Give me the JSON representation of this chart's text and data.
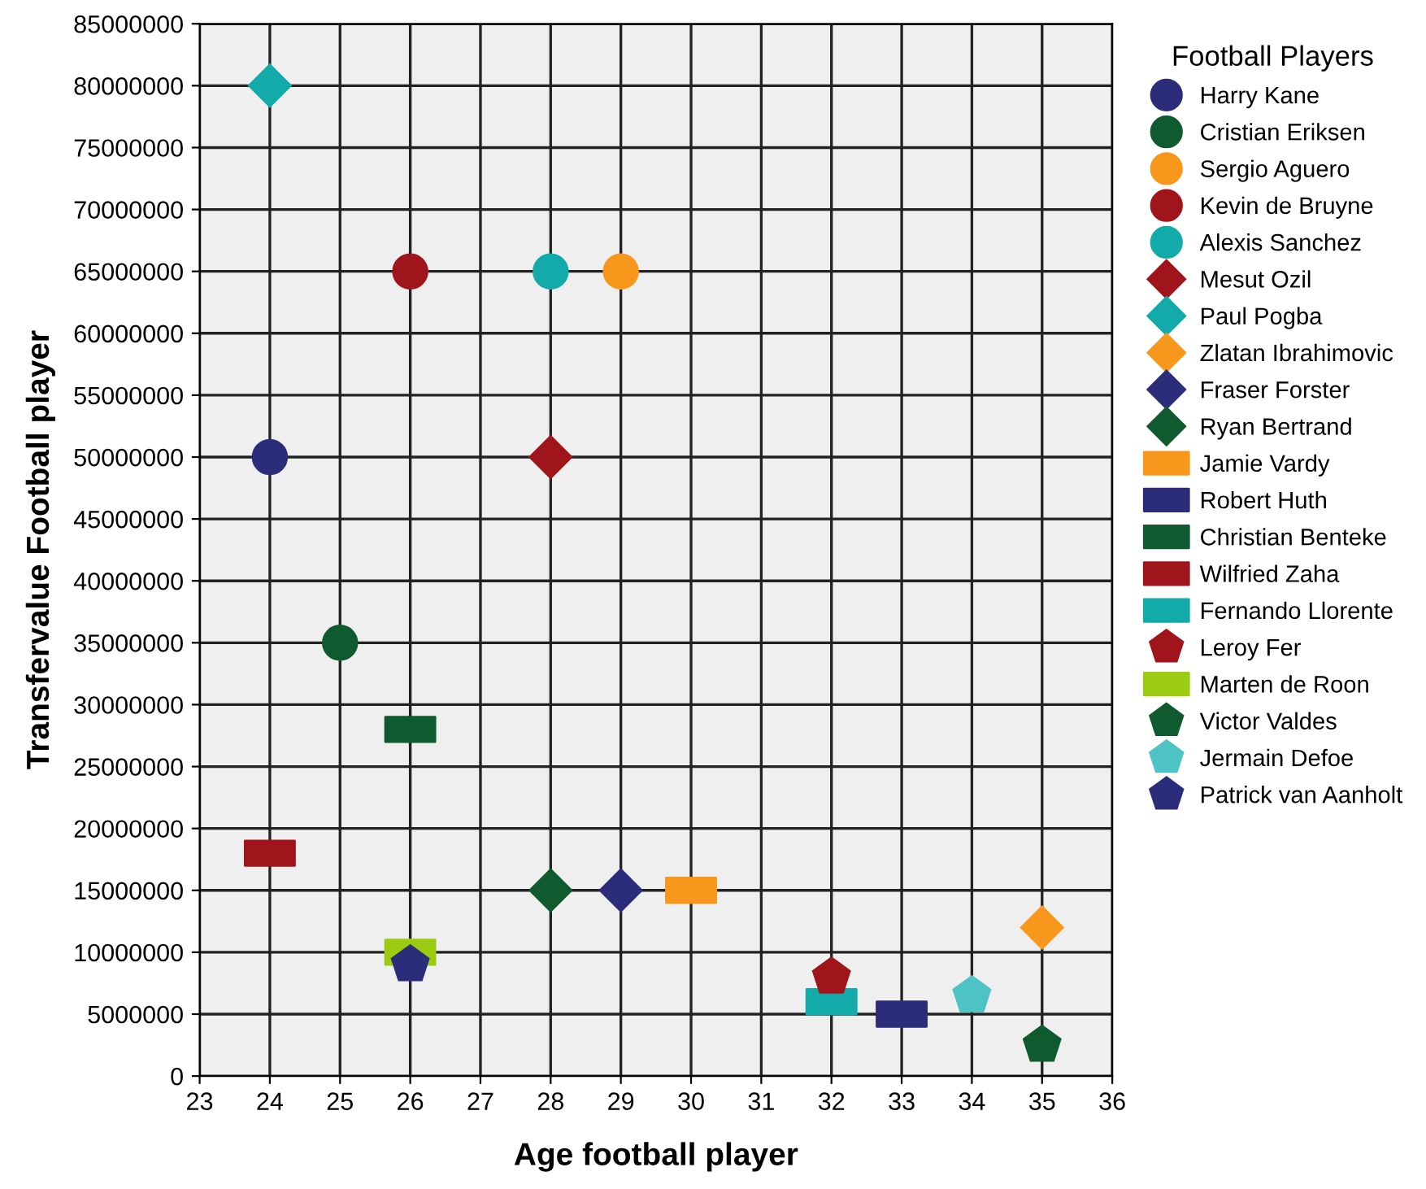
{
  "chart_data": {
    "type": "scatter",
    "xlabel": "Age football player",
    "ylabel": "Transfervalue Football player",
    "legend_title": "Football Players",
    "legend": "right",
    "grid": true,
    "xlim": [
      23,
      36
    ],
    "xticks": [
      23,
      24,
      25,
      26,
      27,
      28,
      29,
      30,
      31,
      32,
      33,
      34,
      35,
      36
    ],
    "ylim": [
      0,
      85000000
    ],
    "yticks": [
      0,
      5000000,
      10000000,
      15000000,
      20000000,
      25000000,
      30000000,
      35000000,
      40000000,
      45000000,
      50000000,
      55000000,
      60000000,
      65000000,
      70000000,
      75000000,
      80000000,
      85000000
    ],
    "series": [
      {
        "name": "Harry Kane",
        "color": "#2b2d7a",
        "marker": "circle",
        "x": [
          24
        ],
        "values": [
          50000000
        ]
      },
      {
        "name": "Cristian Eriksen",
        "color": "#0f5a2e",
        "marker": "circle",
        "x": [
          25
        ],
        "values": [
          35000000
        ]
      },
      {
        "name": "Sergio Aguero",
        "color": "#f7981d",
        "marker": "circle",
        "x": [
          29
        ],
        "values": [
          65000000
        ]
      },
      {
        "name": "Kevin de Bruyne",
        "color": "#a0151b",
        "marker": "circle",
        "x": [
          26
        ],
        "values": [
          65000000
        ]
      },
      {
        "name": "Alexis Sanchez",
        "color": "#13aaaa",
        "marker": "circle",
        "x": [
          28
        ],
        "values": [
          65000000
        ]
      },
      {
        "name": "Mesut Ozil",
        "color": "#a0151b",
        "marker": "diamond",
        "x": [
          28
        ],
        "values": [
          50000000
        ]
      },
      {
        "name": "Paul Pogba",
        "color": "#13aaaa",
        "marker": "diamond",
        "x": [
          24
        ],
        "values": [
          80000000
        ]
      },
      {
        "name": "Zlatan Ibrahimovic",
        "color": "#f7981d",
        "marker": "diamond",
        "x": [
          35
        ],
        "values": [
          12000000
        ]
      },
      {
        "name": "Fraser Forster",
        "color": "#2b2d7a",
        "marker": "diamond",
        "x": [
          29
        ],
        "values": [
          15000000
        ]
      },
      {
        "name": "Ryan Bertrand",
        "color": "#0f5a2e",
        "marker": "diamond",
        "x": [
          28
        ],
        "values": [
          15000000
        ]
      },
      {
        "name": "Jamie Vardy",
        "color": "#f7981d",
        "marker": "square",
        "x": [
          30
        ],
        "values": [
          15000000
        ]
      },
      {
        "name": "Robert Huth",
        "color": "#2b2d7a",
        "marker": "square",
        "x": [
          33
        ],
        "values": [
          5000000
        ]
      },
      {
        "name": "Christian Benteke",
        "color": "#0f5a2e",
        "marker": "square",
        "x": [
          26
        ],
        "values": [
          28000000
        ]
      },
      {
        "name": "Wilfried Zaha",
        "color": "#a0151b",
        "marker": "square",
        "x": [
          24
        ],
        "values": [
          18000000
        ]
      },
      {
        "name": "Fernando Llorente",
        "color": "#13aaaa",
        "marker": "square",
        "x": [
          32
        ],
        "values": [
          6000000
        ]
      },
      {
        "name": "Leroy Fer",
        "color": "#a0151b",
        "x": [
          32
        ],
        "values": [
          8000000
        ]
      },
      {
        "name": "Marten de Roon",
        "color": "#9ccc11",
        "marker": "square",
        "x": [
          26
        ],
        "values": [
          10000000
        ]
      },
      {
        "name": "Victor Valdes",
        "color": "#0f5a2e",
        "x": [
          35
        ],
        "values": [
          2500000
        ]
      },
      {
        "name": "Jermain Defoe",
        "color": "#4dc3c6",
        "x": [
          34
        ],
        "values": [
          6500000
        ]
      },
      {
        "name": "Patrick van Aanholt",
        "color": "#2b2d7a",
        "x": [
          26
        ],
        "values": [
          9000000
        ]
      }
    ]
  }
}
